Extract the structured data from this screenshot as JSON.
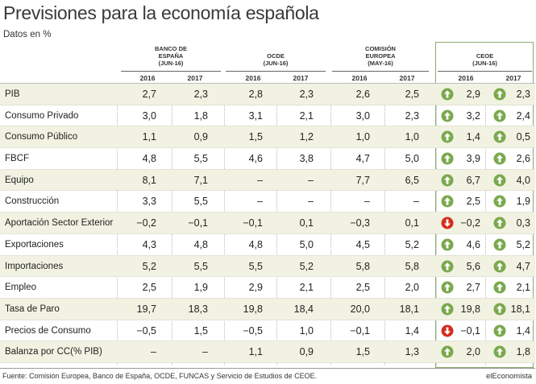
{
  "title": "Previsiones para la economía española",
  "subtitle": "Datos en %",
  "groups": [
    {
      "name_lines": [
        "BANCO DE",
        "ESPAÑA",
        "(JUN-16)"
      ],
      "years": [
        "2016",
        "2017"
      ]
    },
    {
      "name_lines": [
        "OCDE",
        "(JUN-16)"
      ],
      "years": [
        "2016",
        "2017"
      ]
    },
    {
      "name_lines": [
        "COMISIÓN",
        "EUROPEA",
        "(MAY-16)"
      ],
      "years": [
        "2016",
        "2017"
      ]
    },
    {
      "name_lines": [
        "CEOE",
        "(JUN-16)"
      ],
      "years": [
        "2016",
        "2017"
      ]
    }
  ],
  "chart_data": {
    "type": "table",
    "columns": [
      "Banco de España 2016",
      "Banco de España 2017",
      "OCDE 2016",
      "OCDE 2017",
      "Comisión Europea 2016",
      "Comisión Europea 2017",
      "CEOE 2016",
      "CEOE 2017"
    ],
    "rows": [
      {
        "label": "PIB",
        "values": [
          "2,7",
          "2,3",
          "2,8",
          "2,3",
          "2,6",
          "2,5",
          "2,9",
          "2,3"
        ],
        "arrows": [
          "up",
          "up"
        ]
      },
      {
        "label": "Consumo Privado",
        "values": [
          "3,0",
          "1,8",
          "3,1",
          "2,1",
          "3,0",
          "2,3",
          "3,2",
          "2,4"
        ],
        "arrows": [
          "up",
          "up"
        ]
      },
      {
        "label": "Consumo Público",
        "values": [
          "1,1",
          "0,9",
          "1,5",
          "1,2",
          "1,0",
          "1,0",
          "1,4",
          "0,5"
        ],
        "arrows": [
          "up",
          "up"
        ]
      },
      {
        "label": "FBCF",
        "values": [
          "4,8",
          "5,5",
          "4,6",
          "3,8",
          "4,7",
          "5,0",
          "3,9",
          "2,6"
        ],
        "arrows": [
          "up",
          "up"
        ]
      },
      {
        "label": "Equipo",
        "values": [
          "8,1",
          "7,1",
          "–",
          "–",
          "7,7",
          "6,5",
          "6,7",
          "4,0"
        ],
        "arrows": [
          "up",
          "up"
        ]
      },
      {
        "label": "Construcción",
        "values": [
          "3,3",
          "5,5",
          "–",
          "–",
          "–",
          "–",
          "2,5",
          "1,9"
        ],
        "arrows": [
          "up",
          "up"
        ]
      },
      {
        "label": "Aportación Sector Exterior",
        "values": [
          "−0,2",
          "−0,1",
          "−0,1",
          "0,1",
          "−0,3",
          "0,1",
          "−0,2",
          "0,3"
        ],
        "arrows": [
          "down",
          "up"
        ]
      },
      {
        "label": "Exportaciones",
        "values": [
          "4,3",
          "4,8",
          "4,8",
          "5,0",
          "4,5",
          "5,2",
          "4,6",
          "5,2"
        ],
        "arrows": [
          "up",
          "up"
        ]
      },
      {
        "label": "Importaciones",
        "values": [
          "5,2",
          "5,5",
          "5,5",
          "5,2",
          "5,8",
          "5,8",
          "5,6",
          "4,7"
        ],
        "arrows": [
          "up",
          "up"
        ]
      },
      {
        "label": "Empleo",
        "values": [
          "2,5",
          "1,9",
          "2,9",
          "2,1",
          "2,5",
          "2,0",
          "2,7",
          "2,1"
        ],
        "arrows": [
          "up",
          "up"
        ]
      },
      {
        "label": "Tasa de Paro",
        "values": [
          "19,7",
          "18,3",
          "19,8",
          "18,4",
          "20,0",
          "18,1",
          "19,8",
          "18,1"
        ],
        "arrows": [
          "up",
          "up"
        ]
      },
      {
        "label": "Precios de Consumo",
        "values": [
          "−0,5",
          "1,5",
          "−0,5",
          "1,0",
          "−0,1",
          "1,4",
          "−0,1",
          "1,4"
        ],
        "arrows": [
          "down",
          "up"
        ]
      },
      {
        "label": "Balanza por CC(% PIB)",
        "values": [
          "–",
          "–",
          "1,1",
          "0,9",
          "1,5",
          "1,3",
          "2,0",
          "1,8"
        ],
        "arrows": [
          "up",
          "up"
        ]
      }
    ]
  },
  "colors": {
    "arrow_up": "#7aa94d",
    "arrow_down": "#d42e1e",
    "ceoe_border": "#8dab6f"
  },
  "source": "Fuente: Comisión Europea, Banco de España, OCDE, FUNCAS y Servicio de Estudios de CEOE.",
  "brand": "elEconomista"
}
